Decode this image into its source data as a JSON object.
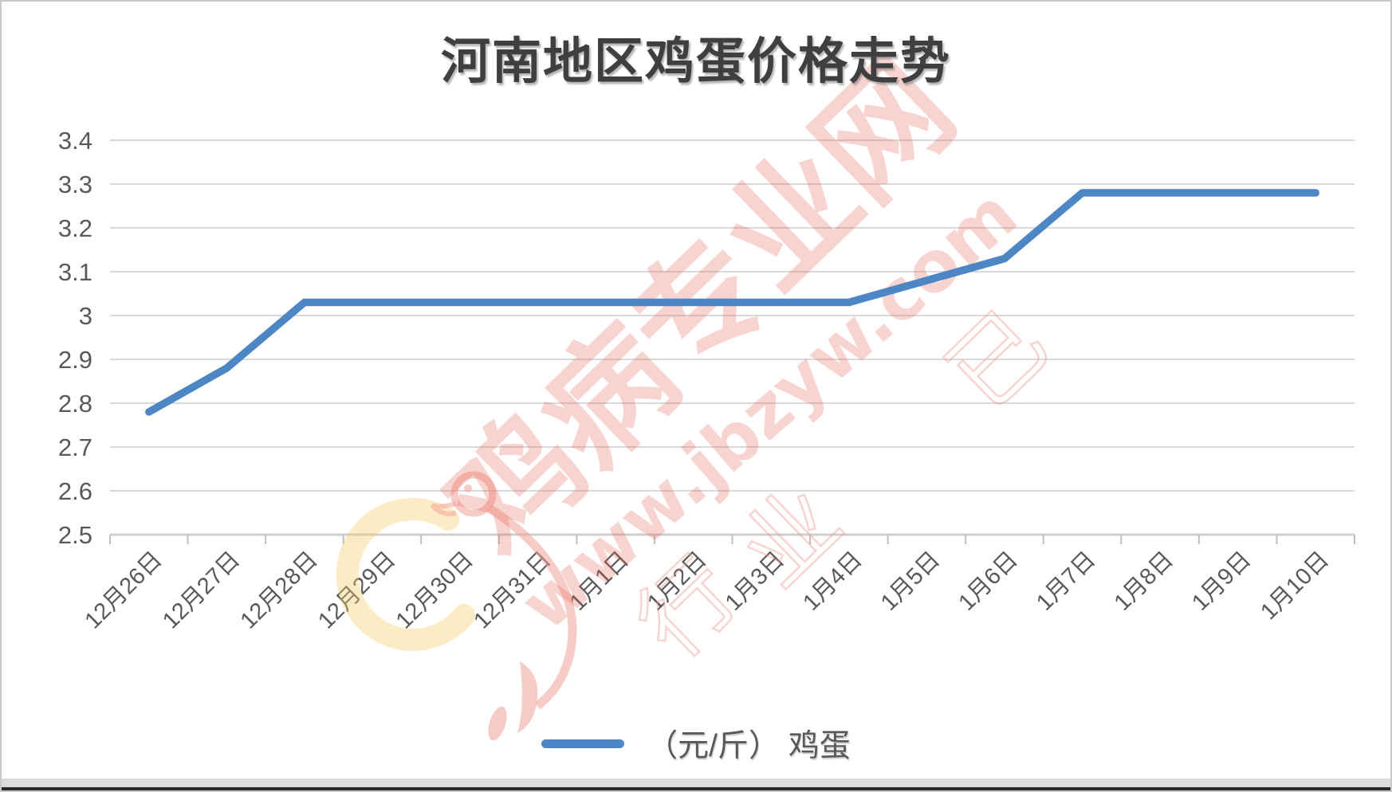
{
  "title": {
    "text": "河南地区鸡蛋价格走势",
    "color": "#3f3f3f"
  },
  "legend": {
    "swatch_color": "#4d86c4",
    "label": "（元/斤） 鸡蛋"
  },
  "watermark": {
    "main_text": "鸡病专业网",
    "url_text": "www.jbzyw.com",
    "faint_chars": [
      "行",
      "业",
      "已"
    ],
    "pink": "rgba(229,90,78,0.26)",
    "pink_stroke": "rgba(238,152,142,0.42)",
    "bird_pink": "rgba(242,162,152,0.55)",
    "yellow": "rgba(247,205,105,0.38)"
  },
  "chart_data": {
    "type": "line",
    "title": "河南地区鸡蛋价格走势",
    "series_name": "（元/斤） 鸡蛋",
    "unit": "元/斤",
    "categories": [
      "12月26日",
      "12月27日",
      "12月28日",
      "12月29日",
      "12月30日",
      "12月31日",
      "1月1日",
      "1月2日",
      "1月3日",
      "1月4日",
      "1月5日",
      "1月6日",
      "1月7日",
      "1月8日",
      "1月9日",
      "1月10日"
    ],
    "values": [
      2.78,
      2.88,
      3.03,
      3.03,
      3.03,
      3.03,
      3.03,
      3.03,
      3.03,
      3.03,
      3.08,
      3.13,
      3.28,
      3.28,
      3.28,
      3.28
    ],
    "ylim": [
      2.5,
      3.4
    ],
    "ytick_step": 0.1,
    "ytick_labels": [
      "2.5",
      "2.6",
      "2.7",
      "2.8",
      "2.9",
      "3",
      "3.1",
      "3.2",
      "3.3",
      "3.4"
    ],
    "grid": true,
    "legend_position": "bottom",
    "line_color": "#4d86c4",
    "grid_color": "#d9d9d9",
    "axis_line_color": "#cfcfcf",
    "tick_color": "#bfbfbf",
    "axis_label_color": "#595959"
  }
}
